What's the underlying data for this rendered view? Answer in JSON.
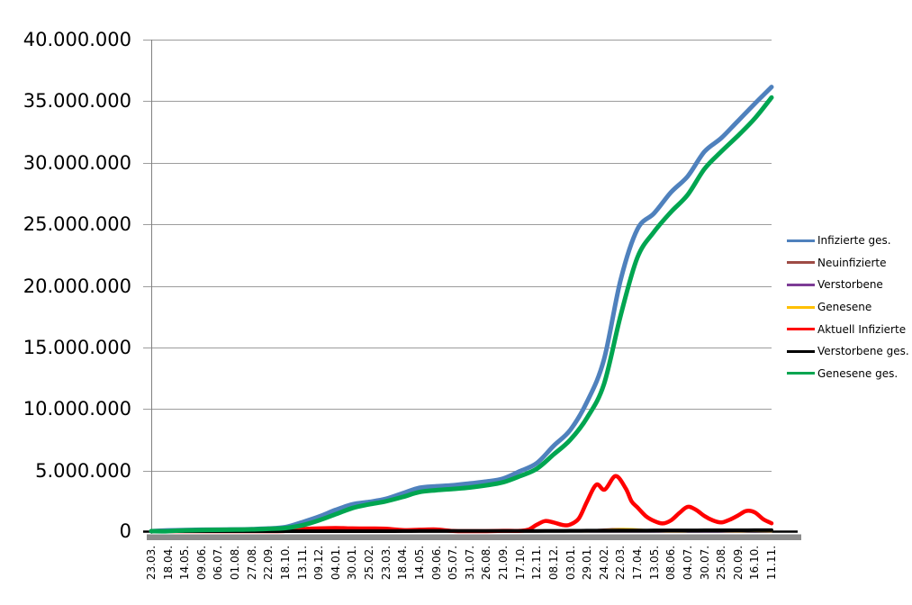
{
  "chart_data": {
    "type": "line",
    "background": "#FFFFFF",
    "grid": true,
    "grid_color": "#9C9C9C",
    "axis_color": "#808080",
    "axis_shadow_color": "#8C8C8C",
    "legend": {
      "position": "right",
      "items": [
        "Infizierte ges.",
        "Neuinfizierte",
        "Verstorbene",
        "Genesene",
        "Aktuell Infizierte",
        "Verstorbene ges.",
        "Genesene ges."
      ]
    },
    "categories": [
      "23.03.",
      "18.04.",
      "14.05.",
      "09.06.",
      "06.07.",
      "01.08.",
      "27.08.",
      "22.09.",
      "18.10.",
      "13.11.",
      "09.12.",
      "04.01.",
      "30.01.",
      "25.02.",
      "23.03.",
      "18.04.",
      "14.05.",
      "09.06.",
      "05.07.",
      "31.07.",
      "26.08.",
      "21.09.",
      "17.10.",
      "12.11.",
      "08.12.",
      "03.01.",
      "29.01.",
      "24.02.",
      "22.03.",
      "17.04.",
      "13.05.",
      "08.06.",
      "04.07.",
      "30.07.",
      "25.08.",
      "20.09.",
      "16.10.",
      "11.11."
    ],
    "y_axis": {
      "min": 0,
      "max": 40000000,
      "tick_labels": [
        "0",
        "5.000.000",
        "10.000.000",
        "15.000.000",
        "20.000.000",
        "25.000.000",
        "30.000.000",
        "35.000.000",
        "40.000.000"
      ],
      "tick_values": [
        0,
        5000000,
        10000000,
        15000000,
        20000000,
        25000000,
        30000000,
        35000000,
        40000000
      ]
    },
    "series": [
      {
        "name": "Infizierte ges.",
        "color": "#4F81BD",
        "values": [
          30000,
          140000,
          170000,
          190000,
          200000,
          210000,
          240000,
          290000,
          400000,
          800000,
          1250000,
          1800000,
          2250000,
          2450000,
          2700000,
          3150000,
          3600000,
          3720000,
          3800000,
          3950000,
          4100000,
          4350000,
          4950000,
          5600000,
          7000000,
          8300000,
          10600000,
          14000000,
          20500000,
          24600000,
          25900000,
          27600000,
          28900000,
          30900000,
          32000000,
          33400000,
          34800000,
          36150000
        ]
      },
      {
        "name": "Neuinfizierte",
        "color": "#9E4B45",
        "values": [
          5000,
          6000,
          2000,
          1000,
          1000,
          1000,
          2000,
          3000,
          12000,
          20000,
          25000,
          22000,
          14000,
          10000,
          16000,
          22000,
          12000,
          4000,
          2000,
          2000,
          4000,
          8000,
          12000,
          40000,
          60000,
          45000,
          100000,
          200000,
          250000,
          180000,
          90000,
          60000,
          100000,
          130000,
          80000,
          50000,
          100000,
          50000
        ]
      },
      {
        "name": "Verstorbene",
        "color": "#7D3C96",
        "values": [
          200,
          3000,
          4000,
          1000,
          500,
          300,
          400,
          500,
          1000,
          4000,
          7000,
          9000,
          6000,
          3000,
          2000,
          2000,
          1000,
          1000,
          500,
          500,
          1000,
          1000,
          1000,
          2000,
          3000,
          4000,
          3000,
          2000,
          2000,
          2000,
          1000,
          1000,
          1000,
          1000,
          1000,
          1000,
          2000,
          2000
        ]
      },
      {
        "name": "Genesene",
        "color": "#FFC000",
        "values": [
          1000,
          4000,
          4000,
          2000,
          1000,
          1000,
          1000,
          2000,
          6000,
          15000,
          22000,
          24000,
          16000,
          11000,
          13000,
          20000,
          16000,
          6000,
          2000,
          2000,
          3000,
          6000,
          10000,
          25000,
          50000,
          50000,
          80000,
          170000,
          240000,
          210000,
          110000,
          70000,
          90000,
          120000,
          90000,
          60000,
          90000,
          60000
        ]
      },
      {
        "name": "Aktuell Infizierte",
        "color": "#FF0000",
        "x": [
          0,
          1,
          2,
          3,
          4,
          5,
          6,
          7,
          8,
          9,
          10,
          11,
          12,
          13,
          14,
          15,
          16,
          17,
          18,
          19,
          20,
          21,
          22,
          22.5,
          23,
          23.5,
          24,
          24.6,
          25,
          25.5,
          26,
          26.55,
          27.05,
          27.7,
          28.3,
          28.65,
          29,
          29.5,
          30,
          30.5,
          31,
          31.5,
          32,
          32.5,
          33,
          33.5,
          34,
          34.5,
          35,
          35.5,
          36,
          36.5,
          37
        ],
        "values": [
          30000,
          60000,
          20000,
          10000,
          10000,
          12000,
          18000,
          30000,
          90000,
          240000,
          300000,
          330000,
          300000,
          290000,
          270000,
          160000,
          190000,
          210000,
          90000,
          25000,
          60000,
          100000,
          100000,
          200000,
          600000,
          900000,
          780000,
          560000,
          620000,
          1100000,
          2500000,
          3850000,
          3450000,
          4550000,
          3550000,
          2500000,
          2000000,
          1300000,
          900000,
          700000,
          950000,
          1550000,
          2050000,
          1800000,
          1300000,
          950000,
          780000,
          1000000,
          1350000,
          1720000,
          1600000,
          1050000,
          720000
        ]
      },
      {
        "name": "Verstorbene ges.",
        "color": "#000000",
        "values": [
          500,
          4000,
          8000,
          8700,
          9000,
          9200,
          9300,
          9400,
          9800,
          13000,
          21000,
          35000,
          56000,
          69000,
          75000,
          80000,
          86000,
          89000,
          90500,
          91500,
          92000,
          92500,
          94000,
          97000,
          101000,
          108000,
          114000,
          119000,
          124000,
          130000,
          136000,
          139000,
          141000,
          143000,
          145000,
          148000,
          151000,
          155000
        ]
      },
      {
        "name": "Genesene ges.",
        "color": "#00A550",
        "values": [
          10000,
          70000,
          140000,
          170000,
          185000,
          195000,
          220000,
          260000,
          330000,
          550000,
          950000,
          1450000,
          1950000,
          2250000,
          2500000,
          2850000,
          3250000,
          3400000,
          3500000,
          3620000,
          3800000,
          4050000,
          4550000,
          5150000,
          6300000,
          7500000,
          9300000,
          12000000,
          17600000,
          22300000,
          24400000,
          26000000,
          27400000,
          29500000,
          30900000,
          32200000,
          33600000,
          35300000
        ]
      }
    ]
  }
}
